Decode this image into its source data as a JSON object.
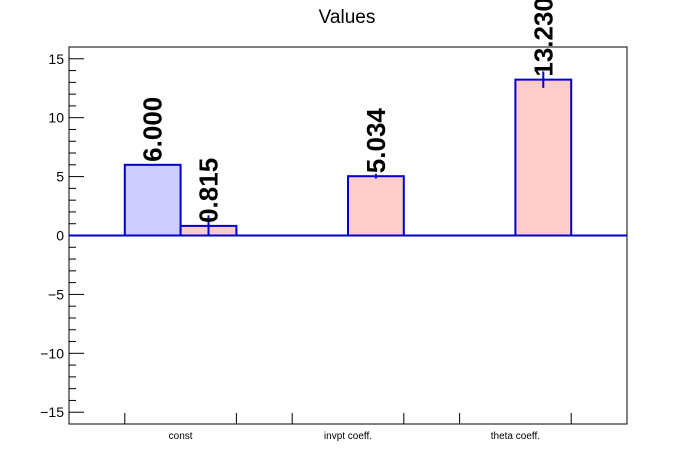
{
  "chart_data": {
    "type": "bar",
    "title": "Values",
    "categories": [
      "const",
      "invpt coeff.",
      "theta coeff."
    ],
    "ylim": [
      -16,
      16
    ],
    "yticks": [
      -15,
      -10,
      -5,
      0,
      5,
      10,
      15
    ],
    "ytick_labels": [
      "−15",
      "−10",
      "−5",
      "0",
      "5",
      "10",
      "15"
    ],
    "grid": false,
    "bars": [
      {
        "category": "const",
        "slot": 0,
        "value": 6.0,
        "error": 0,
        "label": "6.000",
        "fill": "#ccccff",
        "stroke": "#0000cc"
      },
      {
        "category": "const",
        "slot": 1,
        "value": 0.815,
        "error": 0.9,
        "label": "0.815",
        "fill": "#ffcccc",
        "stroke": "#0000cc"
      },
      {
        "category": "invpt coeff.",
        "slot": 1,
        "value": 5.034,
        "error": 0.2,
        "label": "5.034",
        "fill": "#ffcccc",
        "stroke": "#0000cc"
      },
      {
        "category": "theta coeff.",
        "slot": 1,
        "value": 13.23,
        "error": 0.7,
        "label": "13.230",
        "fill": "#ffcccc",
        "stroke": "#0000cc"
      }
    ],
    "colors": {
      "axis": "#000000",
      "zero_line": "#0000cc",
      "bar_outline": "#0000cc"
    }
  }
}
